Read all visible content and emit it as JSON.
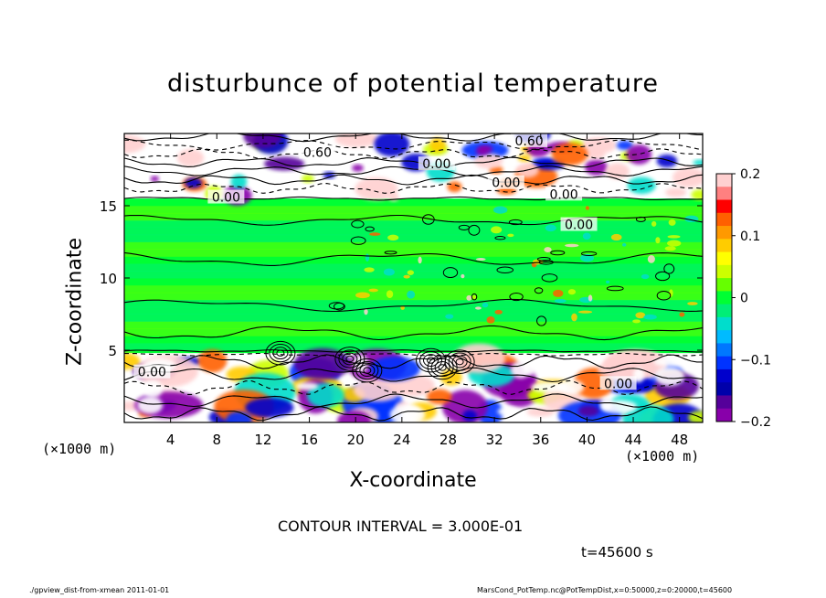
{
  "chart_data": {
    "type": "heatmap",
    "title": "disturbunce of potential temperature",
    "xlabel": "X-coordinate",
    "ylabel": "Z-coordinate",
    "x_unit_left": "(×1000 m)",
    "x_unit_right": "(×1000 m)",
    "xlim": [
      0,
      50
    ],
    "ylim": [
      0,
      20
    ],
    "x_ticks": [
      4,
      8,
      12,
      16,
      20,
      24,
      28,
      32,
      36,
      40,
      44,
      48
    ],
    "y_ticks": [
      5,
      10,
      15
    ],
    "colorbar": {
      "range": [
        -0.2,
        0.2
      ],
      "tick_values": [
        0.2,
        0.1,
        0,
        -0.1,
        -0.2
      ],
      "tick_labels": [
        "0.2",
        "0.1",
        "0",
        "−0.1",
        "−0.2"
      ],
      "colors": [
        "#ffd0d0",
        "#ff8080",
        "#ff0000",
        "#ff6000",
        "#ff9900",
        "#ffcc00",
        "#ffff00",
        "#ccff00",
        "#66ff00",
        "#00ff33",
        "#00ee77",
        "#00ddcc",
        "#00bbff",
        "#0077ff",
        "#0033ff",
        "#0000cc",
        "#0000aa",
        "#55009a",
        "#8800aa"
      ]
    },
    "contour_labels": [
      {
        "text": "0.60",
        "x": 35,
        "z": 19.5
      },
      {
        "text": "0.60",
        "x": 16.7,
        "z": 18.7
      },
      {
        "text": "0.00",
        "x": 27,
        "z": 17.9
      },
      {
        "text": "0.00",
        "x": 33,
        "z": 16.6
      },
      {
        "text": "0.00",
        "x": 38,
        "z": 15.8
      },
      {
        "text": "0.00",
        "x": 8.8,
        "z": 15.6
      },
      {
        "text": "0.00",
        "x": 39.3,
        "z": 13.7
      },
      {
        "text": "0.00",
        "x": 2.4,
        "z": 3.5
      },
      {
        "text": "0.00",
        "x": 42.7,
        "z": 2.7
      }
    ],
    "contour_interval": "CONTOUR INTERVAL = 3.000E-01",
    "time": "t=45600 s"
  },
  "footer": {
    "left": "./gpview_dist-from-xmean  2011-01-01",
    "right": "MarsCond_PotTemp.nc@PotTempDist,x=0:50000,z=0:20000,t=45600"
  }
}
